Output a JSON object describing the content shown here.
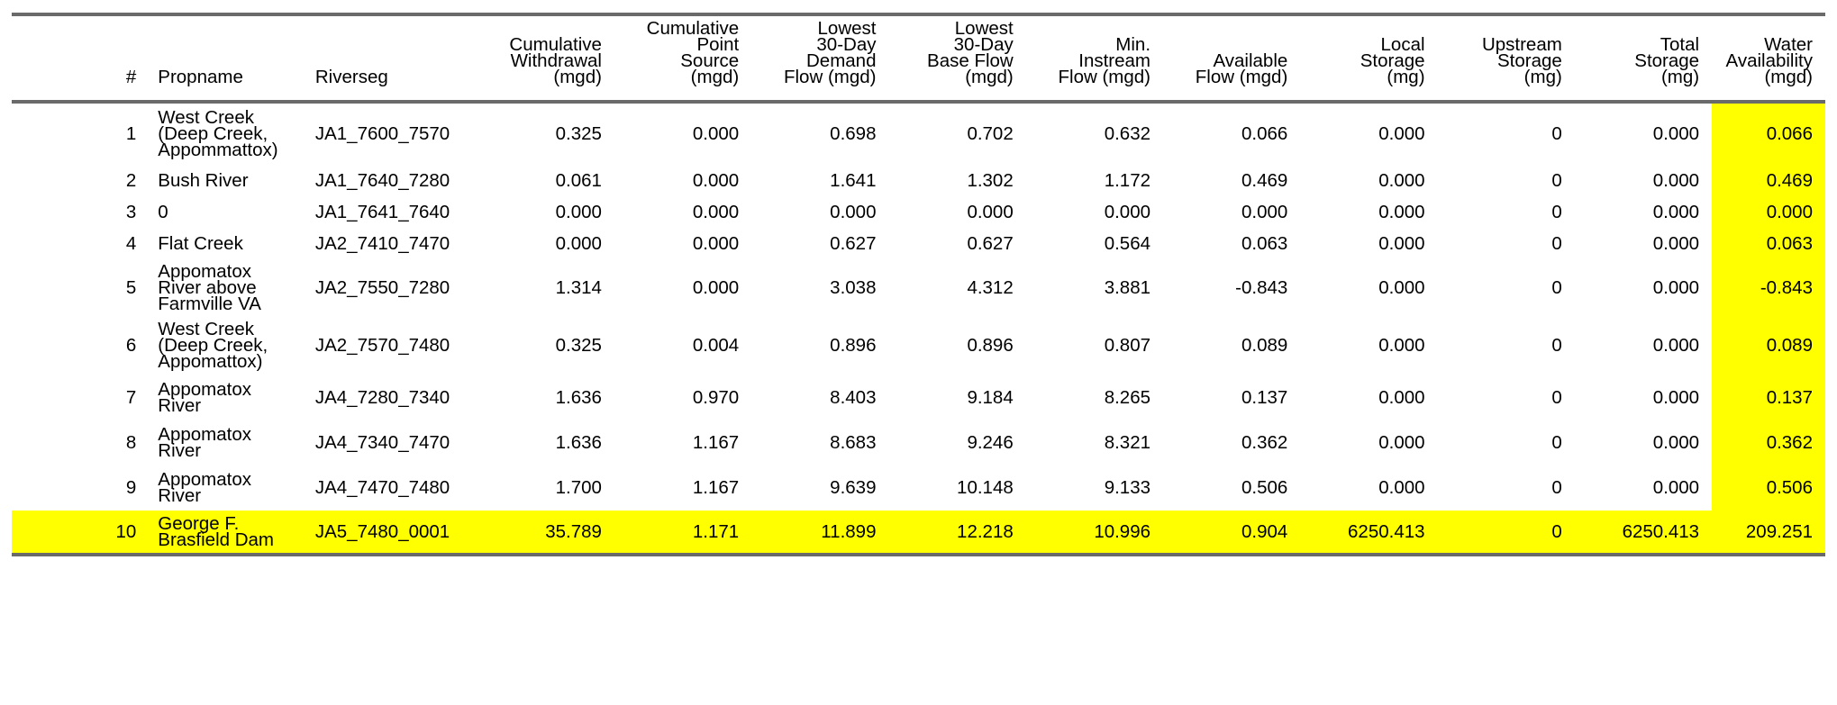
{
  "headers": [
    [
      "#"
    ],
    [
      "Propname"
    ],
    [
      "Riverseg"
    ],
    [
      "Cumulative",
      "Withdrawal",
      "(mgd)"
    ],
    [
      "Cumulative",
      "Point",
      "Source",
      "(mgd)"
    ],
    [
      "Lowest",
      "30-Day",
      "Demand",
      "Flow (mgd)"
    ],
    [
      "Lowest",
      "30-Day",
      "Base Flow",
      "(mgd)"
    ],
    [
      "Min.",
      "Instream",
      "Flow (mgd)"
    ],
    [
      "Available",
      "Flow (mgd)"
    ],
    [
      "Local",
      "Storage",
      "(mg)"
    ],
    [
      "Upstream",
      "Storage",
      "(mg)"
    ],
    [
      "Total",
      "Storage",
      "(mg)"
    ],
    [
      "Water",
      "Availability",
      "(mgd)"
    ]
  ],
  "rows": [
    [
      "1",
      "West Creek (Deep Creek, Appommattox)",
      "JA1_7600_7570",
      "0.325",
      "0.000",
      "0.698",
      "0.702",
      "0.632",
      "0.066",
      "0.000",
      "0",
      "0.000",
      "0.066"
    ],
    [
      "2",
      "Bush River",
      "JA1_7640_7280",
      "0.061",
      "0.000",
      "1.641",
      "1.302",
      "1.172",
      "0.469",
      "0.000",
      "0",
      "0.000",
      "0.469"
    ],
    [
      "3",
      "0",
      "JA1_7641_7640",
      "0.000",
      "0.000",
      "0.000",
      "0.000",
      "0.000",
      "0.000",
      "0.000",
      "0",
      "0.000",
      "0.000"
    ],
    [
      "4",
      "Flat Creek",
      "JA2_7410_7470",
      "0.000",
      "0.000",
      "0.627",
      "0.627",
      "0.564",
      "0.063",
      "0.000",
      "0",
      "0.000",
      "0.063"
    ],
    [
      "5",
      "Appomatox River above Farmville VA",
      "JA2_7550_7280",
      "1.314",
      "0.000",
      "3.038",
      "4.312",
      "3.881",
      "-0.843",
      "0.000",
      "0",
      "0.000",
      "-0.843"
    ],
    [
      "6",
      "West Creek (Deep Creek, Appomattox)",
      "JA2_7570_7480",
      "0.325",
      "0.004",
      "0.896",
      "0.896",
      "0.807",
      "0.089",
      "0.000",
      "0",
      "0.000",
      "0.089"
    ],
    [
      "7",
      "Appomatox River",
      "JA4_7280_7340",
      "1.636",
      "0.970",
      "8.403",
      "9.184",
      "8.265",
      "0.137",
      "0.000",
      "0",
      "0.000",
      "0.137"
    ],
    [
      "8",
      "Appomatox River",
      "JA4_7340_7470",
      "1.636",
      "1.167",
      "8.683",
      "9.246",
      "8.321",
      "0.362",
      "0.000",
      "0",
      "0.000",
      "0.362"
    ],
    [
      "9",
      "Appomatox River",
      "JA4_7470_7480",
      "1.700",
      "1.167",
      "9.639",
      "10.148",
      "9.133",
      "0.506",
      "0.000",
      "0",
      "0.000",
      "0.506"
    ],
    [
      "10",
      "George F. Brasfield Dam",
      "JA5_7480_0001",
      "35.789",
      "1.171",
      "11.899",
      "12.218",
      "10.996",
      "0.904",
      "6250.413",
      "0",
      "6250.413",
      "209.251"
    ]
  ],
  "highlight_color": "#ffff00",
  "rule_color": "#6a6a6a"
}
